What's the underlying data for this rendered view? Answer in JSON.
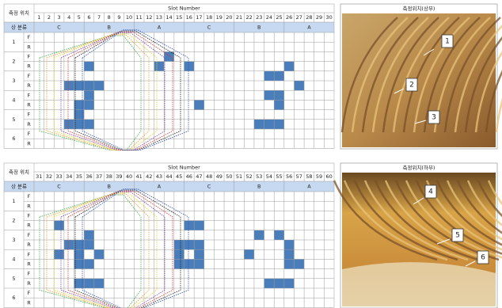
{
  "tables": [
    {
      "header": {
        "position": "측정 위치",
        "slot": "Slot Number",
        "phase": "상 분류"
      },
      "slots": [
        1,
        2,
        3,
        4,
        5,
        6,
        7,
        8,
        9,
        10,
        11,
        12,
        13,
        14,
        15,
        16,
        17,
        18,
        19,
        20,
        21,
        22,
        23,
        24,
        25,
        26,
        27,
        28,
        29,
        30
      ],
      "phases": [
        "C",
        "B",
        "A",
        "C",
        "B",
        "A"
      ],
      "rows": [
        {
          "label": "1",
          "sub": [
            "F",
            "R"
          ]
        },
        {
          "label": "2",
          "sub": [
            "F",
            "R"
          ]
        },
        {
          "label": "3",
          "sub": [
            "F",
            "R"
          ]
        },
        {
          "label": "4",
          "sub": [
            "F",
            "R"
          ]
        },
        {
          "label": "5",
          "sub": [
            "F",
            "R"
          ]
        },
        {
          "label": "6",
          "sub": [
            "F",
            "R"
          ]
        }
      ]
    },
    {
      "header": {
        "position": "측정 위치",
        "slot": "Slot Number",
        "phase": "상 분류"
      },
      "slots": [
        31,
        32,
        33,
        34,
        35,
        36,
        37,
        38,
        39,
        40,
        41,
        42,
        43,
        44,
        45,
        46,
        47,
        48,
        49,
        50,
        51,
        52,
        53,
        54,
        55,
        56,
        57,
        58,
        59,
        60
      ],
      "phases": [
        "C",
        "B",
        "A",
        "C",
        "B",
        "A"
      ],
      "rows": [
        {
          "label": "1",
          "sub": [
            "F",
            "R"
          ]
        },
        {
          "label": "2",
          "sub": [
            "F",
            "R"
          ]
        },
        {
          "label": "3",
          "sub": [
            "F",
            "R"
          ]
        },
        {
          "label": "4",
          "sub": [
            "F",
            "R"
          ]
        },
        {
          "label": "5",
          "sub": [
            "F",
            "R"
          ]
        },
        {
          "label": "6",
          "sub": [
            "F",
            "R"
          ]
        }
      ]
    }
  ],
  "photos": [
    {
      "title": "측정위치(상부)",
      "labels": [
        "1",
        "2",
        "3"
      ]
    },
    {
      "title": "측정위치(하부)",
      "labels": [
        "4",
        "5",
        "6"
      ]
    }
  ]
}
